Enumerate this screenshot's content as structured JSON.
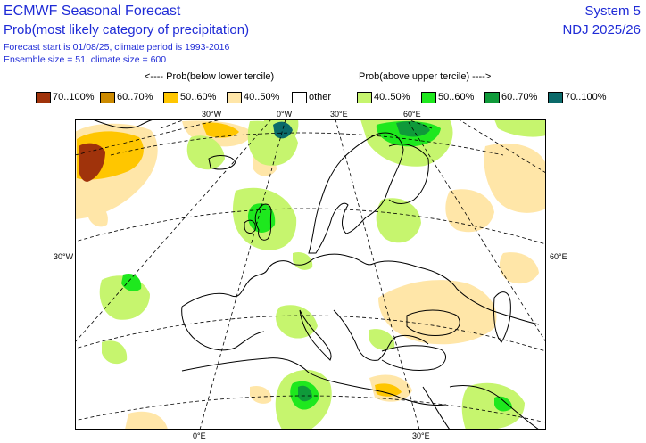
{
  "header": {
    "title": "ECMWF Seasonal Forecast",
    "subtitle": "Prob(most likely category of precipitation)",
    "forecast_info": "Forecast start is 01/08/25, climate period is 1993-2016",
    "ensemble_info": "Ensemble size = 51, climate size = 600",
    "system": "System 5",
    "period": "NDJ 2025/26"
  },
  "legend": {
    "below_label": "<---- Prob(below lower tercile)",
    "above_label": "Prob(above upper tercile) ---->",
    "items": [
      {
        "label": "70..100%",
        "color": "#a0330b"
      },
      {
        "label": "60..70%",
        "color": "#cc8a00"
      },
      {
        "label": "50..60%",
        "color": "#ffc600"
      },
      {
        "label": "40..50%",
        "color": "#ffe6a8"
      },
      {
        "label": "other",
        "color": "#ffffff"
      },
      {
        "label": "40..50%",
        "color": "#c6f56e"
      },
      {
        "label": "50..60%",
        "color": "#1ee81e"
      },
      {
        "label": "60..70%",
        "color": "#0f9a3a"
      },
      {
        "label": "70..100%",
        "color": "#0b6a6a"
      }
    ]
  },
  "map_labels": {
    "lon_30w_top": "30°W",
    "lon_0_top": "0°W",
    "lon_30e_top": "30°E",
    "lon_60e_top": "60°E",
    "lon_30w_left": "30°W",
    "lon_60e_right": "60°E",
    "lon_0_bottom": "0°E",
    "lon_30e_bottom": "30°E"
  }
}
